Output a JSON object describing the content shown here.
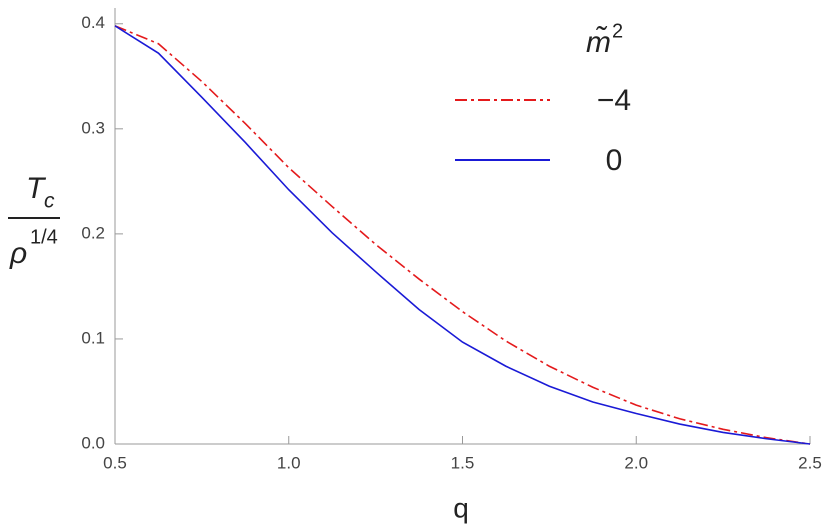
{
  "chart_data": {
    "type": "line",
    "x_label": "q",
    "y_label": {
      "numerator": "T",
      "numerator_sub": "c",
      "denominator": "ρ",
      "denominator_sup": "1/4"
    },
    "legend_title": {
      "text": "m̃",
      "sup": "2"
    },
    "x": [
      0.5,
      0.625,
      0.75,
      0.875,
      1.0,
      1.125,
      1.25,
      1.375,
      1.5,
      1.625,
      1.75,
      1.875,
      2.0,
      2.125,
      2.25,
      2.375,
      2.5
    ],
    "series": [
      {
        "name": "−4",
        "color": "#e41a1c",
        "dash": "dashdot",
        "values": [
          0.398,
          0.381,
          0.345,
          0.305,
          0.263,
          0.226,
          0.19,
          0.157,
          0.126,
          0.098,
          0.074,
          0.054,
          0.037,
          0.024,
          0.014,
          0.006,
          0.0
        ]
      },
      {
        "name": "0",
        "color": "#1a1ad6",
        "dash": "solid",
        "values": [
          0.398,
          0.372,
          0.33,
          0.287,
          0.242,
          0.201,
          0.164,
          0.128,
          0.097,
          0.074,
          0.055,
          0.04,
          0.029,
          0.019,
          0.011,
          0.005,
          0.0
        ]
      }
    ],
    "xlim": [
      0.5,
      2.5
    ],
    "ylim": [
      0,
      0.415
    ],
    "xticks": [
      0.5,
      {
        "value": 1,
        "label": "1.0"
      },
      1.5,
      {
        "value": 2,
        "label": "2.0"
      },
      2.5
    ],
    "yticks": [
      {
        "value": 0,
        "label": "0.0"
      },
      0.1,
      0.2,
      0.3,
      0.4
    ]
  }
}
